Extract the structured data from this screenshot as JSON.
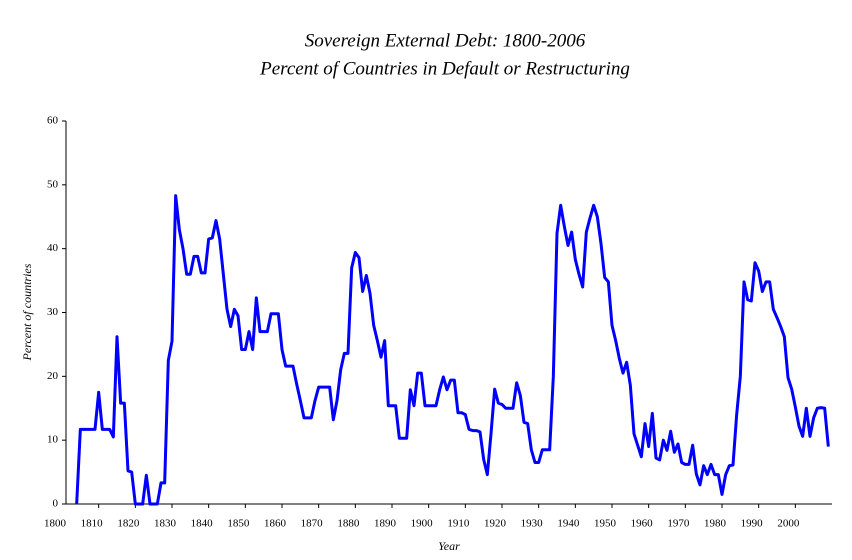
{
  "chart_data": {
    "type": "line",
    "title": "Sovereign External Debt: 1800-2006",
    "subtitle": "Percent of Countries in Default or Restructuring",
    "x_label": "Year",
    "y_label": "Percent of countries",
    "xlim": [
      1800,
      2010
    ],
    "ylim": [
      0,
      60
    ],
    "xticks": [
      1800,
      1810,
      1820,
      1830,
      1840,
      1850,
      1860,
      1870,
      1880,
      1890,
      1900,
      1910,
      1920,
      1930,
      1940,
      1950,
      1960,
      1970,
      1980,
      1990,
      2000
    ],
    "yticks": [
      0,
      10,
      20,
      30,
      40,
      50,
      60
    ],
    "x": [
      1804,
      1805,
      1809,
      1810,
      1811,
      1813,
      1814,
      1815,
      1816,
      1817,
      1818,
      1819,
      1820,
      1822,
      1823,
      1824,
      1826,
      1827,
      1828,
      1829,
      1830,
      1831,
      1832,
      1833,
      1834,
      1835,
      1836,
      1837,
      1838,
      1839,
      1840,
      1841,
      1842,
      1843,
      1844,
      1845,
      1846,
      1847,
      1848,
      1849,
      1850,
      1851,
      1852,
      1853,
      1854,
      1855,
      1856,
      1857,
      1858,
      1859,
      1860,
      1861,
      1862,
      1863,
      1864,
      1865,
      1866,
      1867,
      1868,
      1869,
      1870,
      1871,
      1872,
      1873,
      1874,
      1875,
      1876,
      1877,
      1878,
      1879,
      1880,
      1881,
      1882,
      1883,
      1884,
      1885,
      1886,
      1887,
      1888,
      1889,
      1890,
      1891,
      1892,
      1893,
      1894,
      1895,
      1896,
      1897,
      1898,
      1899,
      1900,
      1901,
      1902,
      1903,
      1904,
      1905,
      1906,
      1907,
      1908,
      1909,
      1910,
      1911,
      1912,
      1913,
      1914,
      1915,
      1916,
      1917,
      1918,
      1919,
      1920,
      1921,
      1922,
      1923,
      1924,
      1925,
      1926,
      1927,
      1928,
      1929,
      1930,
      1931,
      1932,
      1933,
      1934,
      1935,
      1936,
      1937,
      1938,
      1939,
      1940,
      1941,
      1942,
      1943,
      1944,
      1945,
      1946,
      1947,
      1948,
      1949,
      1950,
      1951,
      1952,
      1953,
      1954,
      1955,
      1956,
      1957,
      1958,
      1959,
      1960,
      1961,
      1962,
      1963,
      1964,
      1965,
      1966,
      1967,
      1968,
      1969,
      1970,
      1971,
      1972,
      1973,
      1974,
      1975,
      1976,
      1977,
      1978,
      1979,
      1980,
      1981,
      1982,
      1983,
      1984,
      1985,
      1986,
      1987,
      1988,
      1989,
      1990,
      1991,
      1992,
      1993,
      1994,
      1995,
      1996,
      1997,
      1998,
      1999,
      2000,
      2001,
      2002,
      2003,
      2004,
      2005,
      2006,
      2007,
      2008,
      2009
    ],
    "series": [
      {
        "name": "Percent of countries",
        "color": "#0000ff",
        "values": [
          0,
          11.7,
          11.7,
          17.5,
          11.7,
          11.7,
          10.5,
          26.2,
          15.8,
          15.8,
          5.2,
          5,
          0,
          0,
          4.5,
          0,
          0,
          3.3,
          3.3,
          22.5,
          25.5,
          48.3,
          43,
          40,
          36,
          36,
          38.8,
          38.8,
          36.2,
          36.2,
          41.5,
          41.7,
          44.4,
          41.5,
          36,
          30.5,
          27.8,
          30.5,
          29.5,
          24.2,
          24.2,
          27,
          24.2,
          32.3,
          27,
          27,
          27,
          29.8,
          29.8,
          29.8,
          24.2,
          21.6,
          21.6,
          21.6,
          18.8,
          16.2,
          13.5,
          13.5,
          13.5,
          16.2,
          18.3,
          18.3,
          18.3,
          18.3,
          13.2,
          16.2,
          21,
          23.6,
          23.6,
          37,
          39.4,
          38.6,
          33.3,
          35.8,
          33,
          28,
          25.6,
          23,
          25.6,
          15.4,
          15.4,
          15.4,
          10.3,
          10.3,
          10.3,
          17.9,
          15.4,
          20.5,
          20.5,
          15.4,
          15.4,
          15.4,
          15.4,
          17.9,
          19.9,
          17.9,
          19.4,
          19.4,
          14.3,
          14.3,
          14,
          11.7,
          11.5,
          11.5,
          11.3,
          7,
          4.6,
          11,
          18,
          15.8,
          15.6,
          15,
          15,
          15,
          19,
          17,
          12.8,
          12.6,
          8.5,
          6.5,
          6.5,
          8.5,
          8.5,
          8.5,
          20,
          42.4,
          46.8,
          43.5,
          40.5,
          42.6,
          38.3,
          36,
          34,
          42.6,
          44.8,
          46.8,
          45,
          40.8,
          35.5,
          34.8,
          28,
          25.6,
          22.8,
          20.5,
          22.2,
          18.6,
          11,
          9.2,
          7.4,
          12.6,
          9,
          14.2,
          7.2,
          6.9,
          10,
          8.4,
          11.4,
          8.1,
          9.4,
          6.5,
          6.2,
          6.2,
          9.2,
          4.7,
          3,
          6,
          4.6,
          6.2,
          4.6,
          4.6,
          1.5,
          4.6,
          6,
          6.1,
          14,
          20,
          34.8,
          32,
          31.8,
          37.8,
          36.5,
          33.3,
          34.8,
          34.8,
          30.5,
          29.2,
          27.8,
          26.2,
          19.8,
          18,
          15.2,
          12.2,
          10.6,
          15,
          10.6,
          13.5,
          15,
          15.1,
          15,
          9
        ]
      }
    ]
  }
}
